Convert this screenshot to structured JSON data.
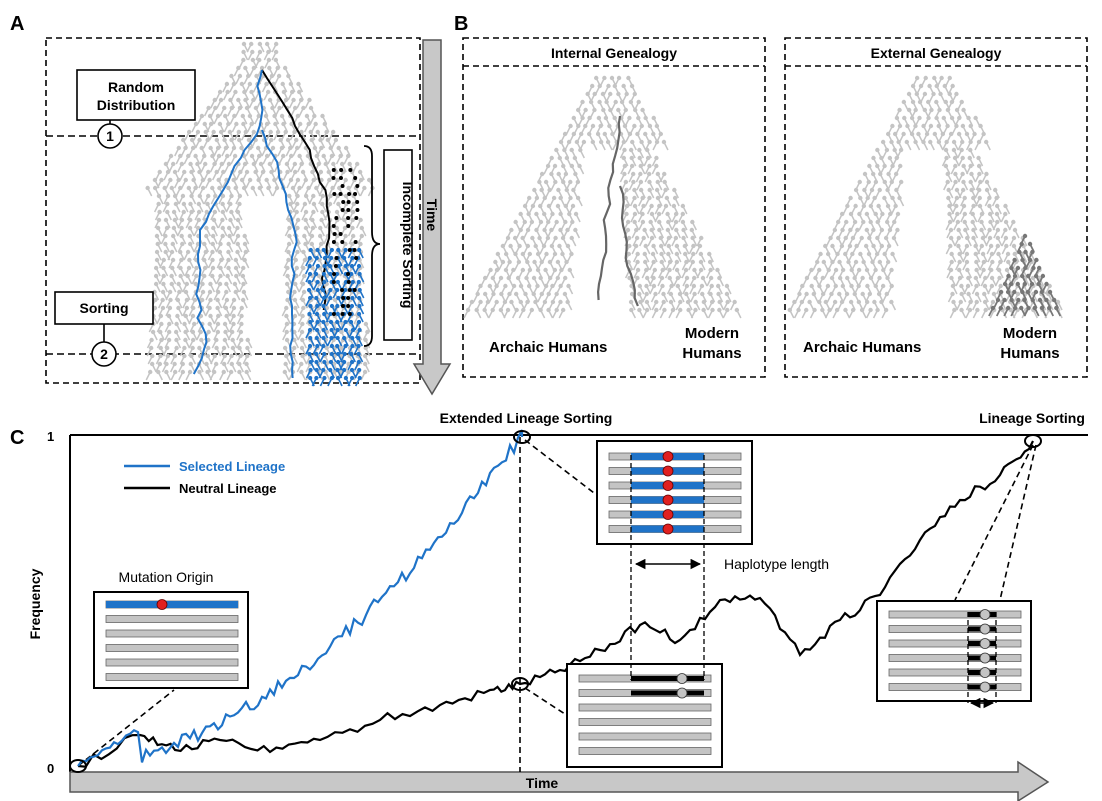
{
  "panels": {
    "a": {
      "letter": "A",
      "random_distribution": [
        "Random",
        "Distribution"
      ],
      "sorting": "Sorting",
      "marker_1": "1",
      "marker_2": "2",
      "incomplete_sorting": "Incomplete Sorting",
      "time": "Time"
    },
    "b": {
      "letter": "B",
      "internal_title": "Internal Genealogy",
      "external_title": "External Genealogy",
      "archaic_humans": "Archaic Humans",
      "modern_humans": [
        "Modern",
        "Humans"
      ]
    },
    "c": {
      "letter": "C",
      "extended_lineage_sorting": "Extended Lineage Sorting",
      "lineage_sorting": "Lineage Sorting",
      "y_label": "Frequency",
      "x_label": "Time",
      "y_tick_top": "1",
      "y_tick_bottom": "0",
      "legend_selected": "Selected Lineage",
      "legend_neutral": "Neutral Lineage",
      "mutation_origin": "Mutation Origin",
      "haplotype_length": "Haplotype length"
    }
  },
  "colors": {
    "selected": "#1f73c8",
    "neutral": "#000000",
    "gray": "#c4c4c4",
    "dark_gray": "#777777",
    "red": "#e02020",
    "arrow_fill": "#c8c8c8"
  }
}
